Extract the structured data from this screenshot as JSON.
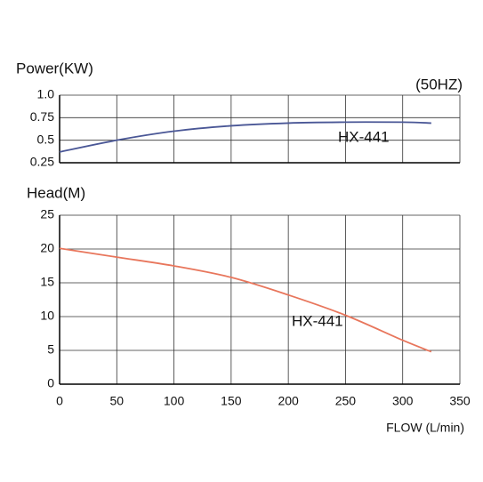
{
  "chart_data": [
    {
      "type": "line",
      "ylabel": "Power(KW)",
      "annotation": "(50HZ)",
      "x": [
        0,
        50,
        100,
        150,
        200,
        250,
        300,
        325
      ],
      "series": [
        {
          "name": "HX-441",
          "color": "#4a5796",
          "values": [
            0.37,
            0.5,
            0.6,
            0.66,
            0.69,
            0.7,
            0.7,
            0.69
          ]
        }
      ],
      "xlim": [
        0,
        350
      ],
      "xticks": [
        0,
        50,
        100,
        150,
        200,
        250,
        300,
        350
      ],
      "ylim": [
        0.25,
        1
      ],
      "yticks": [
        0.25,
        0.5,
        0.75,
        {
          "value": 1,
          "label": "1.0"
        }
      ],
      "grid": true
    },
    {
      "type": "line",
      "ylabel": "Head(M)",
      "xlabel": "FLOW (L/min)",
      "x": [
        0,
        50,
        100,
        150,
        200,
        250,
        300,
        325
      ],
      "series": [
        {
          "name": "HX-441",
          "color": "#e8765c",
          "values": [
            20.1,
            18.8,
            17.5,
            15.8,
            13.2,
            10.2,
            6.5,
            4.8
          ]
        }
      ],
      "xlim": [
        0,
        350
      ],
      "xticks": [
        0,
        50,
        100,
        150,
        200,
        250,
        300,
        350
      ],
      "ylim": [
        0,
        25
      ],
      "yticks": [
        0,
        5,
        10,
        15,
        20,
        25
      ],
      "grid": true
    }
  ]
}
